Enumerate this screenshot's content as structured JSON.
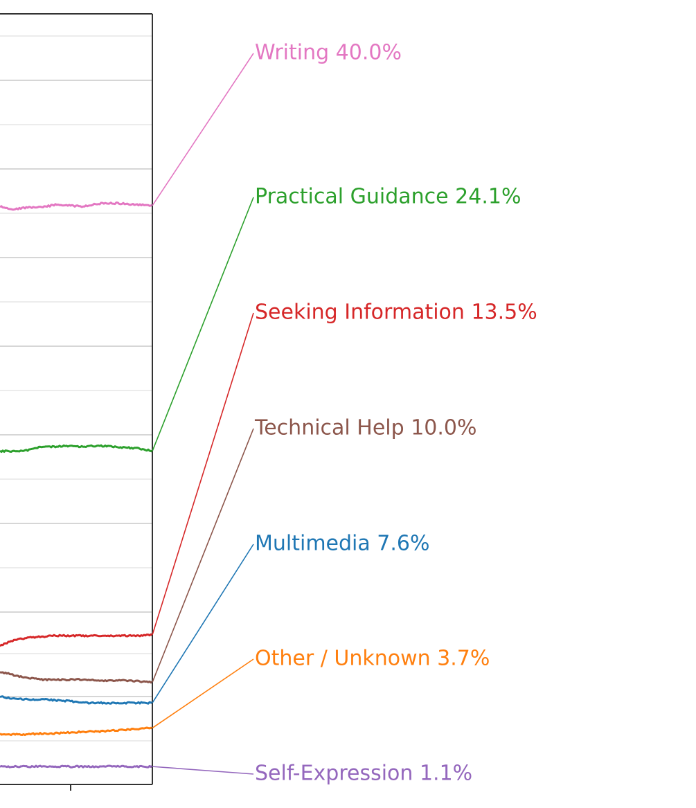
{
  "chart_data": {
    "type": "line",
    "title": "",
    "xlabel": "",
    "ylabel": "",
    "grid": true,
    "legend": "direct labels to the right of the plot",
    "series": [
      {
        "name": "Writing",
        "label": "Writing  40.0%",
        "color": "#e377c2",
        "values": [
          0.585,
          0.582,
          0.584,
          0.584,
          0.587,
          0.586,
          0.585,
          0.588,
          0.589,
          0.588,
          0.587,
          0.586
        ]
      },
      {
        "name": "Practical Guidance",
        "label": "Practical Guidance  24.1%",
        "color": "#2ca02c",
        "values": [
          0.312,
          0.312,
          0.313,
          0.317,
          0.317,
          0.318,
          0.317,
          0.318,
          0.317,
          0.316,
          0.315,
          0.312
        ]
      },
      {
        "name": "Seeking Information",
        "label": "Seeking Information  13.5%",
        "color": "#d62728",
        "values": [
          0.095,
          0.101,
          0.104,
          0.105,
          0.106,
          0.106,
          0.106,
          0.106,
          0.106,
          0.106,
          0.106,
          0.107
        ]
      },
      {
        "name": "Technical Help",
        "label": "Technical Help  10.0%",
        "color": "#8c564b",
        "values": [
          0.066,
          0.062,
          0.059,
          0.057,
          0.057,
          0.057,
          0.057,
          0.056,
          0.056,
          0.056,
          0.055,
          0.054
        ]
      },
      {
        "name": "Multimedia",
        "label": "Multimedia  7.6%",
        "color": "#1f77b4",
        "values": [
          0.038,
          0.036,
          0.035,
          0.035,
          0.034,
          0.033,
          0.031,
          0.031,
          0.031,
          0.031,
          0.031,
          0.031
        ]
      },
      {
        "name": "Other / Unknown",
        "label": "Other / Unknown  3.7%",
        "color": "#ff7f0e",
        "values": [
          -0.004,
          -0.004,
          -0.004,
          -0.003,
          -0.003,
          -0.002,
          -0.001,
          -0.001,
          0.0,
          0.001,
          0.002,
          0.003
        ]
      },
      {
        "name": "Self-Expression",
        "label": "Self-Expression  1.1%",
        "color": "#9467bd",
        "values": [
          -0.04,
          -0.04,
          -0.04,
          -0.04,
          -0.04,
          -0.04,
          -0.04,
          -0.04,
          -0.04,
          -0.04,
          -0.04,
          -0.04
        ]
      }
    ]
  }
}
